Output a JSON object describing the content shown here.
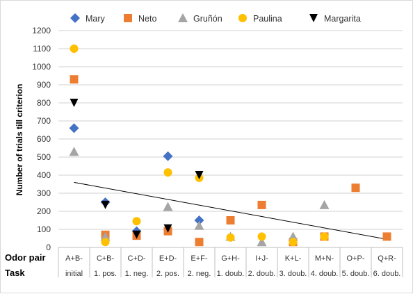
{
  "chart_data": {
    "type": "scatter",
    "ylabel": "Number of trials till criterion",
    "ylim": [
      0,
      1200
    ],
    "ytick_step": 100,
    "grid": true,
    "legend_position": "top",
    "row_labels": [
      "Odor pair",
      "Task"
    ],
    "categories": [
      {
        "odor_pair": "A+B-",
        "task": "initial"
      },
      {
        "odor_pair": "C+B-",
        "task": "1. pos."
      },
      {
        "odor_pair": "C+D-",
        "task": "1. neg."
      },
      {
        "odor_pair": "E+D-",
        "task": "2. pos."
      },
      {
        "odor_pair": "E+F-",
        "task": "2. neg."
      },
      {
        "odor_pair": "G+H-",
        "task": "1. doub."
      },
      {
        "odor_pair": "I+J-",
        "task": "2. doub."
      },
      {
        "odor_pair": "K+L-",
        "task": "3. doub."
      },
      {
        "odor_pair": "M+N-",
        "task": "4. doub."
      },
      {
        "odor_pair": "O+P-",
        "task": "5. doub."
      },
      {
        "odor_pair": "Q+R-",
        "task": "6. doub."
      }
    ],
    "series": [
      {
        "name": "Mary",
        "marker": "diamond",
        "color": "#4472C4",
        "values": [
          660,
          250,
          90,
          505,
          150,
          null,
          null,
          null,
          null,
          null,
          null
        ]
      },
      {
        "name": "Neto",
        "marker": "square",
        "color": "#ED7D31",
        "values": [
          930,
          70,
          65,
          90,
          30,
          150,
          235,
          30,
          60,
          330,
          60
        ]
      },
      {
        "name": "Gruñón",
        "marker": "triangle",
        "color": "#A5A5A5",
        "values": [
          530,
          60,
          null,
          225,
          120,
          60,
          30,
          60,
          235,
          null,
          null
        ]
      },
      {
        "name": "Paulina",
        "marker": "circle",
        "color": "#FFC000",
        "values": [
          1100,
          30,
          145,
          415,
          385,
          55,
          60,
          30,
          60,
          null,
          null
        ]
      },
      {
        "name": "Margarita",
        "marker": "triangle-down",
        "color": "#000000",
        "values": [
          800,
          235,
          70,
          105,
          400,
          null,
          null,
          null,
          null,
          null,
          null
        ]
      }
    ],
    "trendline": {
      "type": "linear",
      "color": "#000000",
      "start_value": 360,
      "end_value": 45
    }
  }
}
